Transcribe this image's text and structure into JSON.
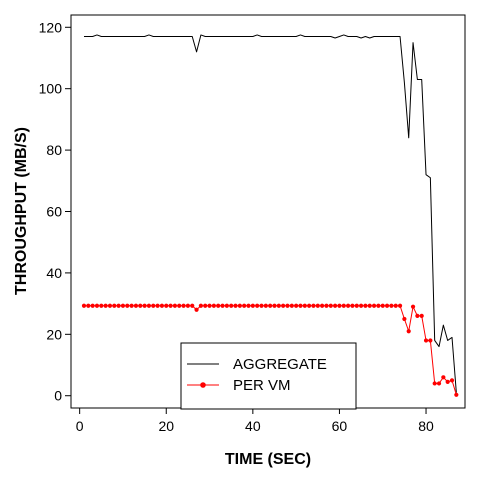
{
  "chart_data": {
    "type": "line",
    "title": "",
    "xlabel": "TIME (SEC)",
    "ylabel": "THROUGHPUT (MB/S)",
    "xlim": [
      -2,
      89
    ],
    "ylim": [
      -4,
      124
    ],
    "xticks": [
      0,
      20,
      40,
      60,
      80
    ],
    "yticks": [
      0,
      20,
      40,
      60,
      80,
      100,
      120
    ],
    "grid": false,
    "legend": "bottom-center",
    "series": [
      {
        "name": "AGGREGATE",
        "color": "#000000",
        "marker": "none",
        "x": [
          1,
          2,
          3,
          4,
          5,
          6,
          7,
          8,
          9,
          10,
          11,
          12,
          13,
          14,
          15,
          16,
          17,
          18,
          19,
          20,
          21,
          22,
          23,
          24,
          25,
          26,
          27,
          28,
          29,
          30,
          31,
          32,
          33,
          34,
          35,
          36,
          37,
          38,
          39,
          40,
          41,
          42,
          43,
          44,
          45,
          46,
          47,
          48,
          49,
          50,
          51,
          52,
          53,
          54,
          55,
          56,
          57,
          58,
          59,
          60,
          61,
          62,
          63,
          64,
          65,
          66,
          67,
          68,
          69,
          70,
          71,
          72,
          73,
          74,
          75,
          76,
          77,
          78,
          79,
          80,
          81,
          82,
          83,
          84,
          85,
          86,
          87
        ],
        "values": [
          117,
          117,
          117,
          117.5,
          117,
          117,
          117,
          117,
          117,
          117,
          117,
          117,
          117,
          117,
          117,
          117.5,
          117,
          117,
          117,
          117,
          117,
          117,
          117,
          117,
          117,
          117,
          112,
          117.5,
          117,
          117,
          117,
          117,
          117,
          117,
          117,
          117,
          117,
          117,
          117,
          117,
          117.5,
          117,
          117,
          117,
          117,
          117,
          117,
          117,
          117,
          117,
          117.5,
          117,
          117,
          117,
          117,
          117,
          117,
          117,
          116.5,
          117,
          117.5,
          117,
          117,
          117,
          116.5,
          117,
          116.5,
          117,
          117,
          117,
          117,
          117,
          117,
          117,
          102,
          84,
          115,
          103,
          103,
          72,
          71,
          18,
          16,
          23,
          18,
          19,
          1
        ]
      },
      {
        "name": "PER VM",
        "color": "#ff0000",
        "marker": "circle",
        "x": [
          1,
          2,
          3,
          4,
          5,
          6,
          7,
          8,
          9,
          10,
          11,
          12,
          13,
          14,
          15,
          16,
          17,
          18,
          19,
          20,
          21,
          22,
          23,
          24,
          25,
          26,
          27,
          28,
          29,
          30,
          31,
          32,
          33,
          34,
          35,
          36,
          37,
          38,
          39,
          40,
          41,
          42,
          43,
          44,
          45,
          46,
          47,
          48,
          49,
          50,
          51,
          52,
          53,
          54,
          55,
          56,
          57,
          58,
          59,
          60,
          61,
          62,
          63,
          64,
          65,
          66,
          67,
          68,
          69,
          70,
          71,
          72,
          73,
          74,
          75,
          76,
          77,
          78,
          79,
          80,
          81,
          82,
          83,
          84,
          85,
          86,
          87
        ],
        "values": [
          29.3,
          29.3,
          29.3,
          29.3,
          29.3,
          29.3,
          29.3,
          29.3,
          29.3,
          29.3,
          29.3,
          29.3,
          29.3,
          29.3,
          29.3,
          29.3,
          29.3,
          29.3,
          29.3,
          29.3,
          29.3,
          29.3,
          29.3,
          29.3,
          29.3,
          29.3,
          28,
          29.3,
          29.3,
          29.3,
          29.3,
          29.3,
          29.3,
          29.3,
          29.3,
          29.3,
          29.3,
          29.3,
          29.3,
          29.3,
          29.3,
          29.3,
          29.3,
          29.3,
          29.3,
          29.3,
          29.3,
          29.3,
          29.3,
          29.3,
          29.3,
          29.3,
          29.3,
          29.3,
          29.3,
          29.3,
          29.3,
          29.3,
          29.3,
          29.3,
          29.3,
          29.3,
          29.3,
          29.3,
          29.3,
          29.3,
          29.3,
          29.3,
          29.3,
          29.3,
          29.3,
          29.3,
          29.3,
          29.3,
          25,
          21,
          29,
          26,
          26,
          18,
          18,
          4,
          4,
          6,
          4.5,
          5,
          0.3
        ]
      }
    ]
  }
}
